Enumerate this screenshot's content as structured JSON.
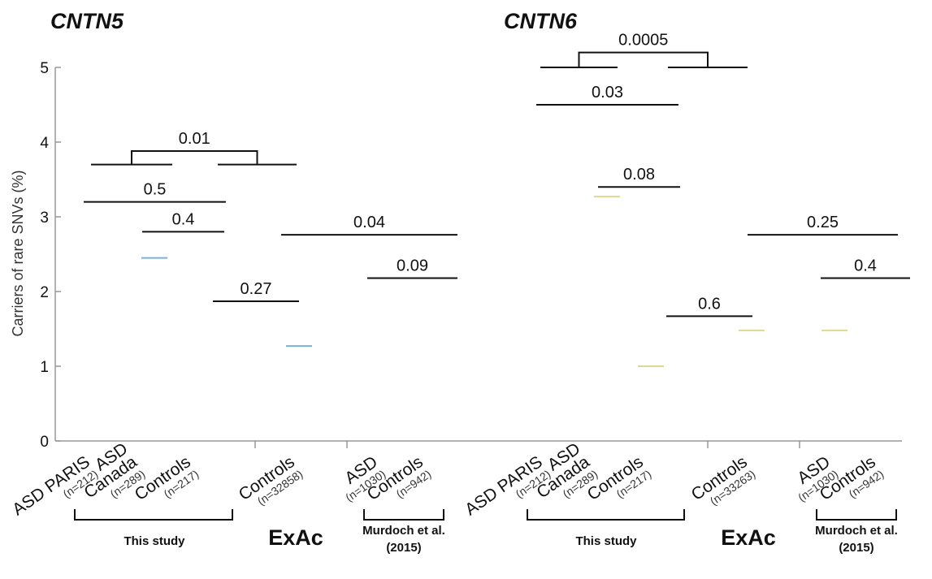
{
  "chart_data": {
    "type": "bar",
    "ylabel": "Carriers of rare SNVs (%)",
    "ylim": [
      0,
      5
    ],
    "yticks": [
      "0",
      "1",
      "2",
      "3",
      "4",
      "5"
    ],
    "panels": [
      {
        "title": "CNTN5",
        "bar_color": "#7ab0e0",
        "bars": [
          {
            "label": "ASD PARIS",
            "n": "(n=212)",
            "value": 0
          },
          {
            "label": "ASD Canada",
            "n": "(n=289)",
            "value": 2.45
          },
          {
            "label": "Controls",
            "n": "(n=217)",
            "value": 0
          },
          {
            "label": "Controls",
            "n": "(n=32858)",
            "value": 1.27
          },
          {
            "label": "ASD",
            "n": "(n=1030)",
            "value": 0
          },
          {
            "label": "Controls",
            "n": "(n=942)",
            "value": 0
          }
        ],
        "comparisons": [
          {
            "p": "0.01",
            "y": 3.88
          },
          {
            "p": "0.5",
            "y": 3.2
          },
          {
            "p": "0.4",
            "y": 2.8
          },
          {
            "p": "0.27",
            "y": 1.87
          },
          {
            "p": "0.04",
            "y": 2.76
          },
          {
            "p": "0.09",
            "y": 2.18
          }
        ],
        "groups": [
          "This study",
          "ExAc",
          "Murdoch et al. (2015)"
        ]
      },
      {
        "title": "CNTN6",
        "bar_color": "#e0d890",
        "bars": [
          {
            "label": "ASD PARIS",
            "n": "(n=212)",
            "value": 0
          },
          {
            "label": "ASD Canada",
            "n": "(n=289)",
            "value": 3.27
          },
          {
            "label": "Controls",
            "n": "(n=217)",
            "value": 1.0
          },
          {
            "label": "Controls",
            "n": "(n=33263)",
            "value": 1.48
          },
          {
            "label": "ASD",
            "n": "(n=1030)",
            "value": 1.48
          },
          {
            "label": "Controls",
            "n": "(n=942)",
            "value": 0
          }
        ],
        "comparisons": [
          {
            "p": "0.0005",
            "y": 5.2
          },
          {
            "p": "0.03",
            "y": 4.5
          },
          {
            "p": "0.08",
            "y": 3.4
          },
          {
            "p": "0.6",
            "y": 1.67
          },
          {
            "p": "0.25",
            "y": 2.76
          },
          {
            "p": "0.4",
            "y": 2.18
          }
        ],
        "groups": [
          "This study",
          "ExAc",
          "Murdoch et al. (2015)"
        ]
      }
    ]
  }
}
